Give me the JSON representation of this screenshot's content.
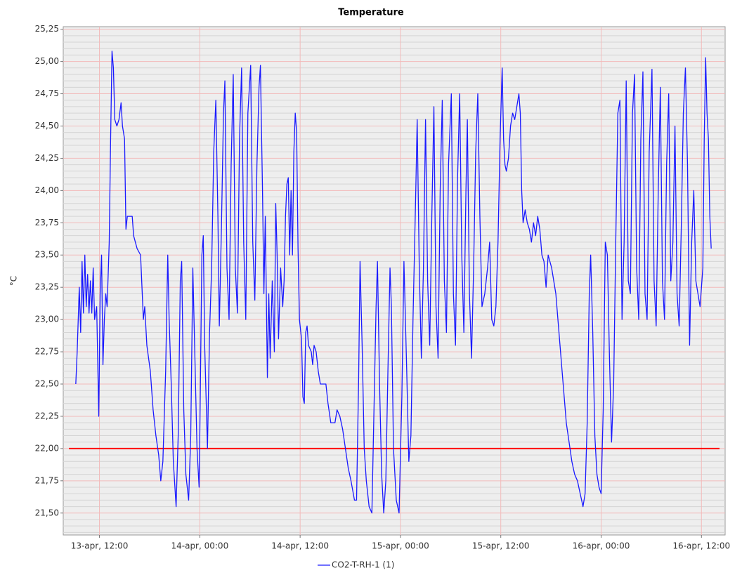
{
  "chart_data": {
    "type": "line",
    "title": "Temperature",
    "y_label": "°C",
    "x": [
      "13-apr, 09:10",
      "13-apr, 09:20",
      "13-apr, 09:35",
      "13-apr, 09:45",
      "13-apr, 09:55",
      "13-apr, 10:05",
      "13-apr, 10:15",
      "13-apr, 10:25",
      "13-apr, 10:35",
      "13-apr, 10:45",
      "13-apr, 10:55",
      "13-apr, 11:05",
      "13-apr, 11:15",
      "13-apr, 11:25",
      "13-apr, 11:40",
      "13-apr, 11:55",
      "13-apr, 12:05",
      "13-apr, 12:15",
      "13-apr, 12:25",
      "13-apr, 12:35",
      "13-apr, 12:45",
      "13-apr, 12:55",
      "13-apr, 13:10",
      "13-apr, 13:20",
      "13-apr, 13:30",
      "13-apr, 13:40",
      "13-apr, 13:50",
      "13-apr, 14:05",
      "13-apr, 14:20",
      "13-apr, 14:35",
      "13-apr, 14:45",
      "13-apr, 15:00",
      "13-apr, 15:10",
      "13-apr, 15:20",
      "13-apr, 15:55",
      "13-apr, 16:05",
      "13-apr, 16:30",
      "13-apr, 16:55",
      "13-apr, 17:05",
      "13-apr, 17:15",
      "13-apr, 17:25",
      "13-apr, 17:40",
      "13-apr, 18:05",
      "13-apr, 18:25",
      "13-apr, 18:45",
      "13-apr, 19:05",
      "13-apr, 19:20",
      "13-apr, 19:35",
      "13-apr, 19:55",
      "13-apr, 20:10",
      "13-apr, 20:20",
      "13-apr, 20:35",
      "13-apr, 20:50",
      "13-apr, 21:10",
      "13-apr, 21:25",
      "13-apr, 21:40",
      "13-apr, 21:50",
      "13-apr, 22:05",
      "13-apr, 22:20",
      "13-apr, 22:40",
      "13-apr, 22:55",
      "13-apr, 23:10",
      "13-apr, 23:25",
      "13-apr, 23:40",
      "13-apr, 23:55",
      "14-apr, 00:00",
      "14-apr, 00:15",
      "14-apr, 00:25",
      "14-apr, 00:35",
      "14-apr, 00:55",
      "14-apr, 01:10",
      "14-apr, 01:25",
      "14-apr, 01:40",
      "14-apr, 01:55",
      "14-apr, 02:10",
      "14-apr, 02:20",
      "14-apr, 02:35",
      "14-apr, 02:50",
      "14-apr, 03:00",
      "14-apr, 03:15",
      "14-apr, 03:30",
      "14-apr, 03:45",
      "14-apr, 04:00",
      "14-apr, 04:15",
      "14-apr, 04:30",
      "14-apr, 04:45",
      "14-apr, 05:00",
      "14-apr, 05:15",
      "14-apr, 05:30",
      "14-apr, 05:45",
      "14-apr, 06:05",
      "14-apr, 06:20",
      "14-apr, 06:35",
      "14-apr, 06:50",
      "14-apr, 07:05",
      "14-apr, 07:15",
      "14-apr, 07:30",
      "14-apr, 07:40",
      "14-apr, 07:50",
      "14-apr, 08:05",
      "14-apr, 08:15",
      "14-apr, 08:25",
      "14-apr, 08:40",
      "14-apr, 08:55",
      "14-apr, 09:05",
      "14-apr, 09:15",
      "14-apr, 09:25",
      "14-apr, 09:40",
      "14-apr, 09:55",
      "14-apr, 10:05",
      "14-apr, 10:15",
      "14-apr, 10:25",
      "14-apr, 10:35",
      "14-apr, 10:45",
      "14-apr, 10:55",
      "14-apr, 11:05",
      "14-apr, 11:15",
      "14-apr, 11:25",
      "14-apr, 11:35",
      "14-apr, 11:45",
      "14-apr, 11:55",
      "14-apr, 12:10",
      "14-apr, 12:20",
      "14-apr, 12:30",
      "14-apr, 12:40",
      "14-apr, 12:50",
      "14-apr, 13:00",
      "14-apr, 13:20",
      "14-apr, 13:30",
      "14-apr, 13:40",
      "14-apr, 13:55",
      "14-apr, 14:10",
      "14-apr, 14:25",
      "14-apr, 14:40",
      "14-apr, 15:05",
      "14-apr, 15:20",
      "14-apr, 15:40",
      "14-apr, 16:10",
      "14-apr, 16:25",
      "14-apr, 16:45",
      "14-apr, 17:05",
      "14-apr, 17:25",
      "14-apr, 17:45",
      "14-apr, 18:05",
      "14-apr, 18:30",
      "14-apr, 18:45",
      "14-apr, 19:00",
      "14-apr, 19:10",
      "14-apr, 19:25",
      "14-apr, 19:40",
      "14-apr, 19:55",
      "14-apr, 20:15",
      "14-apr, 20:35",
      "14-apr, 20:50",
      "14-apr, 21:05",
      "14-apr, 21:15",
      "14-apr, 21:30",
      "14-apr, 21:45",
      "14-apr, 22:00",
      "14-apr, 22:15",
      "14-apr, 22:30",
      "14-apr, 22:45",
      "14-apr, 22:55",
      "14-apr, 23:10",
      "14-apr, 23:30",
      "14-apr, 23:50",
      "15-apr, 00:10",
      "15-apr, 00:25",
      "15-apr, 00:45",
      "15-apr, 01:00",
      "15-apr, 01:15",
      "15-apr, 01:30",
      "15-apr, 01:50",
      "15-apr, 02:00",
      "15-apr, 02:15",
      "15-apr, 02:30",
      "15-apr, 02:45",
      "15-apr, 03:00",
      "15-apr, 03:15",
      "15-apr, 03:30",
      "15-apr, 03:45",
      "15-apr, 04:00",
      "15-apr, 04:15",
      "15-apr, 04:30",
      "15-apr, 04:45",
      "15-apr, 05:00",
      "15-apr, 05:15",
      "15-apr, 05:30",
      "15-apr, 05:45",
      "15-apr, 06:05",
      "15-apr, 06:20",
      "15-apr, 06:35",
      "15-apr, 06:50",
      "15-apr, 07:05",
      "15-apr, 07:20",
      "15-apr, 07:35",
      "15-apr, 07:50",
      "15-apr, 08:00",
      "15-apr, 08:15",
      "15-apr, 08:30",
      "15-apr, 08:45",
      "15-apr, 09:00",
      "15-apr, 09:15",
      "15-apr, 09:30",
      "15-apr, 09:45",
      "15-apr, 10:05",
      "15-apr, 10:25",
      "15-apr, 10:40",
      "15-apr, 10:55",
      "15-apr, 11:10",
      "15-apr, 11:25",
      "15-apr, 11:40",
      "15-apr, 11:55",
      "15-apr, 12:10",
      "15-apr, 12:20",
      "15-apr, 12:30",
      "15-apr, 12:40",
      "15-apr, 12:55",
      "15-apr, 13:10",
      "15-apr, 13:25",
      "15-apr, 13:40",
      "15-apr, 13:55",
      "15-apr, 14:10",
      "15-apr, 14:20",
      "15-apr, 14:30",
      "15-apr, 14:40",
      "15-apr, 14:55",
      "15-apr, 15:10",
      "15-apr, 15:25",
      "15-apr, 15:40",
      "15-apr, 15:55",
      "15-apr, 16:10",
      "15-apr, 16:25",
      "15-apr, 16:40",
      "15-apr, 16:55",
      "15-apr, 17:10",
      "15-apr, 17:25",
      "15-apr, 17:40",
      "15-apr, 18:05",
      "15-apr, 18:20",
      "15-apr, 18:35",
      "15-apr, 18:50",
      "15-apr, 19:05",
      "15-apr, 19:20",
      "15-apr, 19:35",
      "15-apr, 19:50",
      "15-apr, 20:10",
      "15-apr, 20:30",
      "15-apr, 20:50",
      "15-apr, 21:10",
      "15-apr, 21:30",
      "15-apr, 21:50",
      "15-apr, 22:05",
      "15-apr, 22:20",
      "15-apr, 22:35",
      "15-apr, 22:45",
      "15-apr, 23:00",
      "15-apr, 23:15",
      "15-apr, 23:30",
      "15-apr, 23:45",
      "16-apr, 00:00",
      "16-apr, 00:15",
      "16-apr, 00:30",
      "16-apr, 00:45",
      "16-apr, 01:00",
      "16-apr, 01:15",
      "16-apr, 01:30",
      "16-apr, 01:45",
      "16-apr, 02:00",
      "16-apr, 02:15",
      "16-apr, 02:30",
      "16-apr, 02:45",
      "16-apr, 03:00",
      "16-apr, 03:15",
      "16-apr, 03:30",
      "16-apr, 03:45",
      "16-apr, 04:00",
      "16-apr, 04:15",
      "16-apr, 04:30",
      "16-apr, 04:45",
      "16-apr, 05:00",
      "16-apr, 05:15",
      "16-apr, 05:30",
      "16-apr, 05:45",
      "16-apr, 06:05",
      "16-apr, 06:20",
      "16-apr, 06:35",
      "16-apr, 06:50",
      "16-apr, 07:05",
      "16-apr, 07:20",
      "16-apr, 07:35",
      "16-apr, 07:50",
      "16-apr, 08:05",
      "16-apr, 08:20",
      "16-apr, 08:35",
      "16-apr, 08:50",
      "16-apr, 09:05",
      "16-apr, 09:20",
      "16-apr, 09:35",
      "16-apr, 09:50",
      "16-apr, 10:05",
      "16-apr, 10:20",
      "16-apr, 10:35",
      "16-apr, 10:50",
      "16-apr, 11:05",
      "16-apr, 11:20",
      "16-apr, 11:35",
      "16-apr, 11:50",
      "16-apr, 12:10",
      "16-apr, 12:20",
      "16-apr, 12:30",
      "16-apr, 12:40",
      "16-apr, 12:50",
      "16-apr, 13:00",
      "16-apr, 13:10"
    ],
    "series": [
      {
        "name": "CO2-T-RH-1 (1)",
        "color": "#1a1aff",
        "values": [
          22.5,
          22.75,
          23.25,
          22.9,
          23.45,
          23.05,
          23.5,
          23.1,
          23.35,
          23.05,
          23.3,
          23.05,
          23.4,
          23.0,
          23.1,
          22.25,
          23.2,
          23.5,
          22.65,
          23.0,
          23.2,
          23.1,
          23.6,
          24.4,
          25.08,
          24.95,
          24.55,
          24.5,
          24.55,
          24.68,
          24.5,
          24.4,
          23.7,
          23.8,
          23.8,
          23.65,
          23.55,
          23.5,
          23.25,
          23.0,
          23.1,
          22.8,
          22.6,
          22.3,
          22.1,
          21.95,
          21.75,
          21.9,
          22.6,
          23.5,
          23.0,
          22.5,
          21.9,
          21.55,
          22.1,
          23.3,
          23.45,
          22.3,
          21.8,
          21.6,
          22.1,
          23.4,
          22.7,
          22.0,
          21.7,
          22.1,
          23.5,
          23.65,
          22.8,
          22.0,
          22.9,
          23.4,
          24.3,
          24.7,
          23.8,
          22.95,
          23.7,
          24.6,
          24.85,
          23.4,
          23.0,
          24.2,
          24.9,
          23.4,
          23.05,
          24.4,
          24.95,
          23.6,
          23.0,
          24.6,
          24.97,
          23.6,
          23.15,
          24.2,
          24.8,
          24.97,
          24.0,
          23.2,
          23.8,
          22.55,
          23.2,
          22.7,
          23.3,
          22.75,
          23.9,
          23.5,
          22.85,
          23.4,
          23.1,
          23.3,
          23.8,
          24.05,
          24.1,
          23.5,
          24.0,
          23.5,
          24.3,
          24.6,
          24.45,
          23.55,
          23.0,
          22.85,
          22.4,
          22.35,
          22.9,
          22.95,
          22.8,
          22.75,
          22.65,
          22.8,
          22.75,
          22.6,
          22.5,
          22.5,
          22.5,
          22.35,
          22.2,
          22.2,
          22.3,
          22.25,
          22.15,
          22.0,
          21.85,
          21.75,
          21.6,
          21.6,
          22.55,
          23.45,
          22.8,
          22.0,
          21.75,
          21.55,
          21.5,
          22.3,
          23.1,
          23.45,
          22.5,
          21.8,
          21.5,
          21.75,
          22.6,
          23.4,
          23.1,
          22.0,
          21.6,
          21.5,
          22.4,
          23.45,
          22.6,
          21.9,
          22.1,
          23.0,
          24.0,
          24.55,
          23.4,
          22.7,
          23.4,
          24.55,
          23.3,
          22.8,
          23.8,
          24.65,
          23.1,
          22.7,
          24.0,
          24.7,
          23.3,
          22.9,
          24.2,
          24.75,
          23.2,
          22.8,
          24.1,
          24.75,
          23.5,
          22.9,
          24.0,
          24.55,
          23.2,
          22.7,
          23.4,
          24.3,
          24.75,
          23.8,
          23.1,
          23.2,
          23.4,
          23.6,
          23.0,
          22.95,
          23.1,
          23.6,
          24.4,
          24.95,
          24.4,
          24.2,
          24.15,
          24.25,
          24.5,
          24.6,
          24.55,
          24.65,
          24.75,
          24.6,
          24.0,
          23.75,
          23.85,
          23.75,
          23.7,
          23.6,
          23.75,
          23.65,
          23.8,
          23.7,
          23.5,
          23.45,
          23.25,
          23.5,
          23.4,
          23.3,
          23.2,
          23.0,
          22.8,
          22.6,
          22.4,
          22.2,
          22.05,
          21.9,
          21.8,
          21.75,
          21.65,
          21.55,
          21.65,
          22.2,
          23.2,
          23.5,
          22.9,
          22.1,
          21.8,
          21.7,
          21.65,
          22.3,
          23.6,
          23.5,
          22.7,
          22.05,
          22.5,
          23.6,
          24.6,
          24.7,
          23.0,
          23.6,
          24.85,
          23.3,
          23.2,
          24.6,
          24.9,
          23.4,
          23.0,
          24.4,
          24.92,
          23.2,
          23.0,
          24.3,
          24.94,
          23.3,
          22.95,
          24.0,
          24.8,
          23.3,
          23.0,
          24.2,
          24.75,
          23.3,
          23.6,
          24.5,
          23.2,
          22.95,
          23.7,
          24.6,
          24.95,
          24.2,
          22.8,
          23.6,
          24.0,
          23.3,
          23.2,
          23.1,
          23.4,
          24.4,
          25.03,
          24.6,
          24.4,
          23.8,
          23.55
        ]
      }
    ],
    "reference_lines": [
      {
        "value": 22,
        "color": "#ff0000"
      }
    ],
    "xlim": [
      "13-apr, 07:40",
      "16-apr, 14:50"
    ],
    "xticks": [
      "13-apr, 12:00",
      "14-apr, 00:00",
      "14-apr, 12:00",
      "15-apr, 00:00",
      "15-apr, 12:00",
      "16-apr, 00:00",
      "16-apr, 12:00"
    ],
    "ylim": [
      21.33,
      25.27
    ],
    "yticks": [
      {
        "value": 21.5,
        "label": "21,50"
      },
      {
        "value": 21.75,
        "label": "21,75"
      },
      {
        "value": 22,
        "label": "22,00"
      },
      {
        "value": 22.25,
        "label": "22,25"
      },
      {
        "value": 22.5,
        "label": "22,50"
      },
      {
        "value": 22.75,
        "label": "22,75"
      },
      {
        "value": 23,
        "label": "23,00"
      },
      {
        "value": 23.25,
        "label": "23,25"
      },
      {
        "value": 23.5,
        "label": "23,50"
      },
      {
        "value": 23.75,
        "label": "23,75"
      },
      {
        "value": 24,
        "label": "24,00"
      },
      {
        "value": 24.25,
        "label": "24,25"
      },
      {
        "value": 24.5,
        "label": "24,50"
      },
      {
        "value": 24.75,
        "label": "24,75"
      },
      {
        "value": 25,
        "label": "25,00"
      },
      {
        "value": 25.25,
        "label": "25,25"
      }
    ],
    "grid": true,
    "minor_grid": true,
    "legend": "bottom"
  }
}
